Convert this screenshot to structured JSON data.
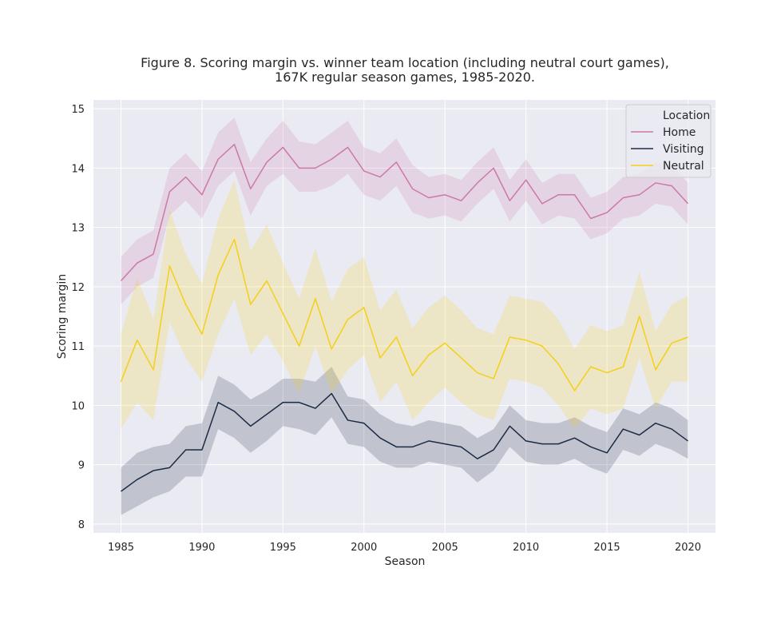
{
  "chart_data": {
    "type": "line",
    "title_line1": "Figure 8. Scoring margin vs. winner team location (including neutral court games),",
    "title_line2": "167K regular season games, 1985-2020.",
    "xlabel": "Season",
    "ylabel": "Scoring margin",
    "xlim": [
      1983.3,
      2021.7
    ],
    "ylim": [
      7.85,
      15.15
    ],
    "xticks": [
      1985,
      1990,
      1995,
      2000,
      2005,
      2010,
      2015,
      2020
    ],
    "yticks": [
      8,
      9,
      10,
      11,
      12,
      13,
      14,
      15
    ],
    "grid": true,
    "legend": {
      "title": "Location",
      "placement": "top-right"
    },
    "x": [
      1985,
      1986,
      1987,
      1988,
      1989,
      1990,
      1991,
      1992,
      1993,
      1994,
      1995,
      1996,
      1997,
      1998,
      1999,
      2000,
      2001,
      2002,
      2003,
      2004,
      2005,
      2006,
      2007,
      2008,
      2009,
      2010,
      2011,
      2012,
      2013,
      2014,
      2015,
      2016,
      2017,
      2018,
      2019,
      2020
    ],
    "series": [
      {
        "name": "Home",
        "color": "#cc79a7",
        "values": [
          12.1,
          12.4,
          12.55,
          13.6,
          13.85,
          13.55,
          14.15,
          14.4,
          13.65,
          14.1,
          14.35,
          14.0,
          14.0,
          14.15,
          14.35,
          13.95,
          13.85,
          14.1,
          13.65,
          13.5,
          13.55,
          13.45,
          13.75,
          14.0,
          13.45,
          13.8,
          13.4,
          13.55,
          13.55,
          13.15,
          13.25,
          13.5,
          13.55,
          13.75,
          13.7,
          13.4
        ],
        "lower": [
          11.7,
          12.0,
          12.15,
          13.2,
          13.45,
          13.15,
          13.7,
          13.95,
          13.2,
          13.7,
          13.9,
          13.6,
          13.6,
          13.7,
          13.9,
          13.55,
          13.45,
          13.7,
          13.25,
          13.15,
          13.2,
          13.1,
          13.4,
          13.65,
          13.1,
          13.45,
          13.05,
          13.2,
          13.15,
          12.8,
          12.9,
          13.15,
          13.2,
          13.4,
          13.35,
          13.05
        ],
        "upper": [
          12.5,
          12.8,
          12.95,
          14.0,
          14.25,
          13.95,
          14.6,
          14.85,
          14.1,
          14.5,
          14.8,
          14.45,
          14.4,
          14.6,
          14.8,
          14.35,
          14.25,
          14.5,
          14.05,
          13.85,
          13.9,
          13.8,
          14.1,
          14.35,
          13.8,
          14.15,
          13.75,
          13.9,
          13.9,
          13.5,
          13.6,
          13.85,
          13.9,
          14.1,
          14.05,
          13.75
        ]
      },
      {
        "name": "Visiting",
        "color": "#1c2b45",
        "values": [
          8.55,
          8.75,
          8.9,
          8.95,
          9.25,
          9.25,
          10.05,
          9.9,
          9.65,
          9.85,
          10.05,
          10.05,
          9.95,
          10.2,
          9.75,
          9.7,
          9.45,
          9.3,
          9.3,
          9.4,
          9.35,
          9.3,
          9.1,
          9.25,
          9.65,
          9.4,
          9.35,
          9.35,
          9.45,
          9.3,
          9.2,
          9.6,
          9.5,
          9.7,
          9.6,
          9.4
        ],
        "lower": [
          8.15,
          8.3,
          8.45,
          8.55,
          8.8,
          8.8,
          9.6,
          9.45,
          9.2,
          9.4,
          9.65,
          9.6,
          9.5,
          9.8,
          9.35,
          9.3,
          9.05,
          8.95,
          8.95,
          9.05,
          9.0,
          8.95,
          8.7,
          8.9,
          9.3,
          9.05,
          9.0,
          9.0,
          9.1,
          8.95,
          8.85,
          9.25,
          9.15,
          9.35,
          9.25,
          9.1
        ],
        "upper": [
          8.95,
          9.2,
          9.3,
          9.35,
          9.65,
          9.7,
          10.5,
          10.35,
          10.1,
          10.25,
          10.45,
          10.45,
          10.4,
          10.65,
          10.15,
          10.1,
          9.85,
          9.7,
          9.65,
          9.75,
          9.7,
          9.65,
          9.45,
          9.6,
          10.0,
          9.75,
          9.7,
          9.7,
          9.8,
          9.65,
          9.55,
          9.95,
          9.85,
          10.05,
          9.95,
          9.75
        ]
      },
      {
        "name": "Neutral",
        "color": "#f5d017",
        "values": [
          10.4,
          11.1,
          10.6,
          12.35,
          11.7,
          11.2,
          12.2,
          12.8,
          11.7,
          12.1,
          11.55,
          11.0,
          11.8,
          10.95,
          11.45,
          11.65,
          10.8,
          11.15,
          10.5,
          10.85,
          11.05,
          10.8,
          10.55,
          10.45,
          11.15,
          11.1,
          11.0,
          10.7,
          10.25,
          10.65,
          10.55,
          10.65,
          11.5,
          10.6,
          11.05,
          11.15
        ],
        "lower": [
          9.6,
          10.05,
          9.75,
          11.4,
          10.8,
          10.4,
          11.2,
          11.8,
          10.85,
          11.2,
          10.75,
          10.2,
          11.0,
          10.2,
          10.6,
          10.85,
          10.05,
          10.4,
          9.75,
          10.05,
          10.3,
          10.05,
          9.85,
          9.75,
          10.45,
          10.4,
          10.3,
          10.0,
          9.6,
          9.95,
          9.85,
          9.95,
          10.8,
          9.95,
          10.4,
          10.4
        ],
        "upper": [
          11.2,
          12.15,
          11.45,
          13.3,
          12.55,
          12.05,
          13.15,
          13.8,
          12.6,
          13.05,
          12.4,
          11.8,
          12.65,
          11.75,
          12.3,
          12.5,
          11.6,
          11.95,
          11.3,
          11.65,
          11.85,
          11.6,
          11.3,
          11.2,
          11.85,
          11.8,
          11.75,
          11.45,
          10.95,
          11.35,
          11.25,
          11.35,
          12.25,
          11.25,
          11.7,
          11.85
        ]
      }
    ]
  }
}
